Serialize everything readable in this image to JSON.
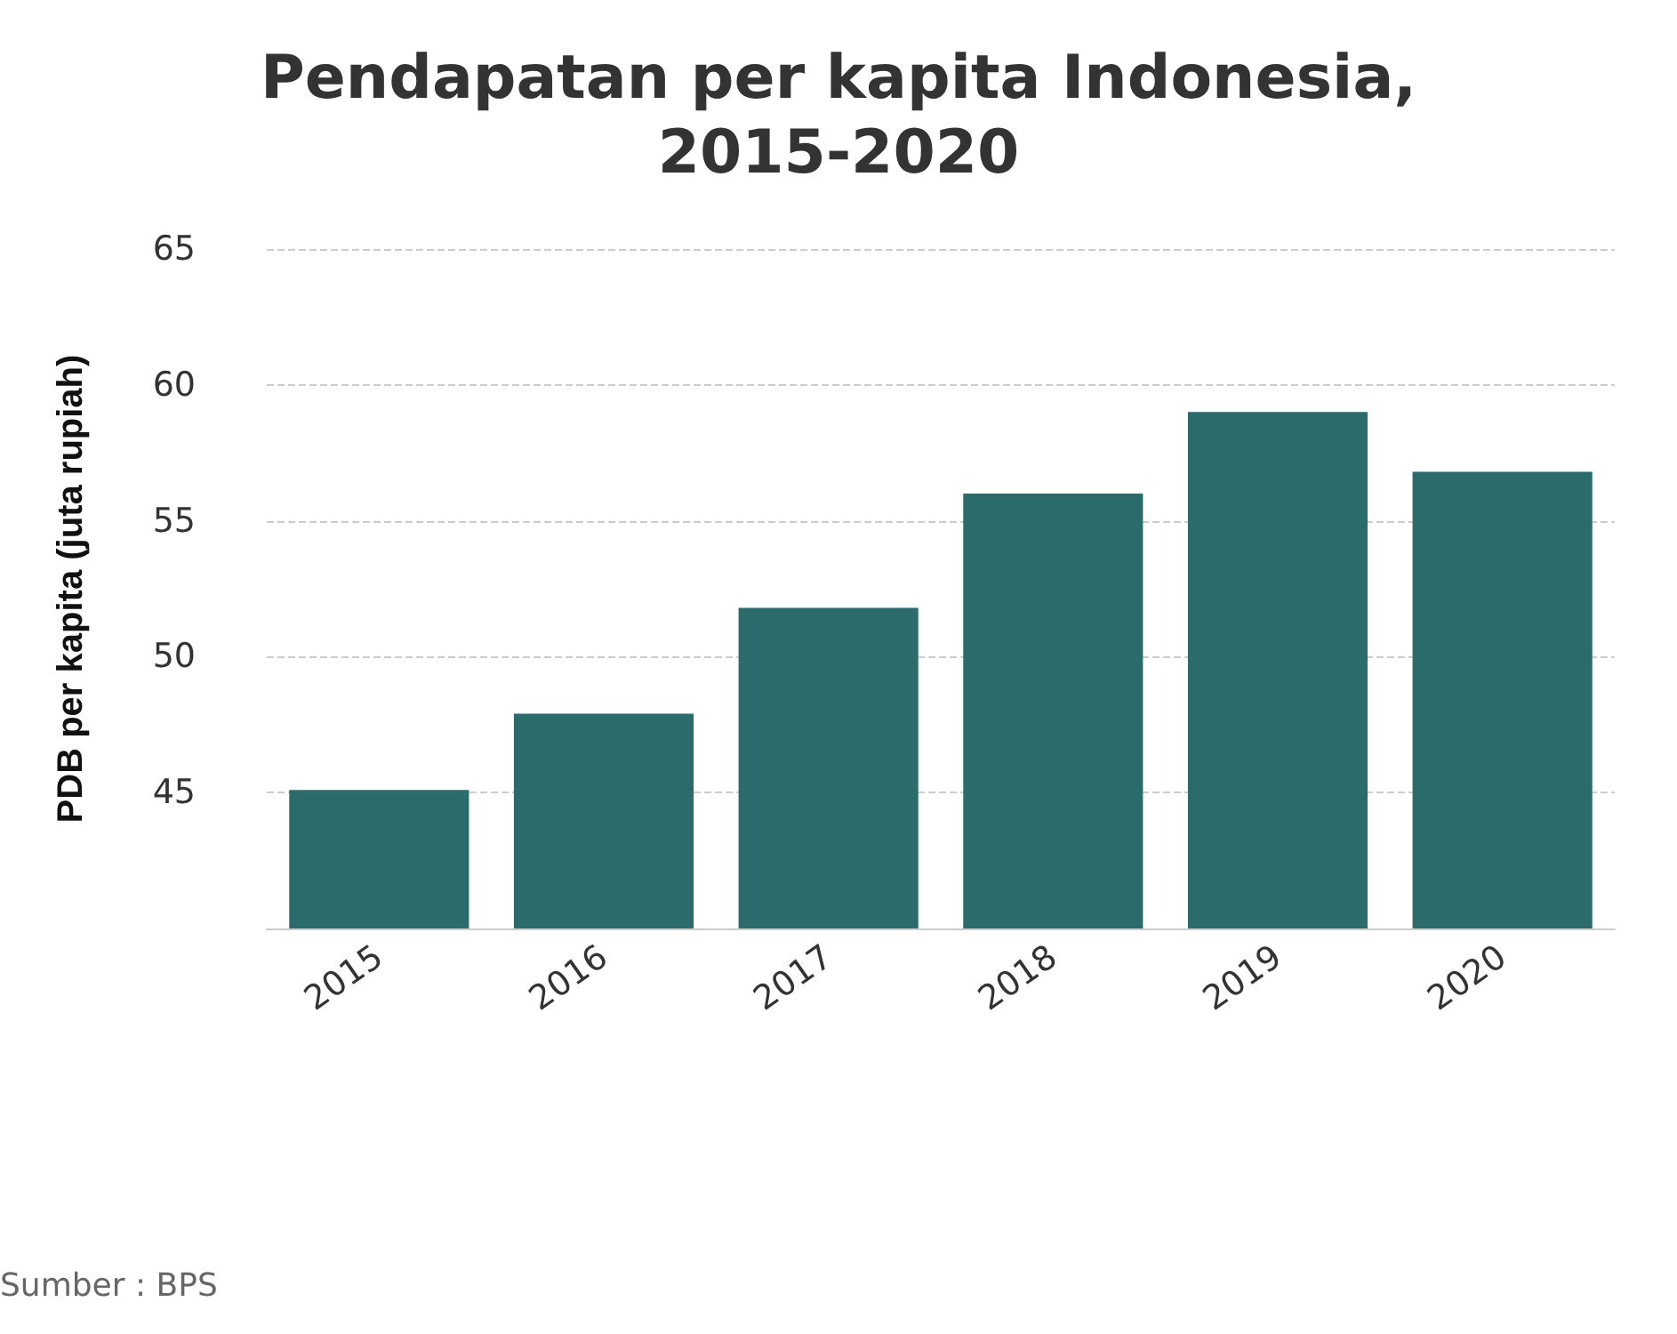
{
  "chart_data": {
    "type": "bar",
    "title": "Pendapatan per kapita Indonesia,\n2015-2020",
    "ylabel": "PDB per kapita (juta rupiah)",
    "categories": [
      "2015",
      "2016",
      "2017",
      "2018",
      "2019",
      "2020"
    ],
    "values": [
      45.1,
      47.9,
      51.8,
      56.0,
      59.0,
      56.8
    ],
    "color": "#2b6b6b",
    "ylim": [
      40,
      65
    ],
    "yticks": [
      45,
      50,
      55,
      60,
      65
    ],
    "grid": "y",
    "annotations": [
      "Sumber : BPS"
    ]
  }
}
